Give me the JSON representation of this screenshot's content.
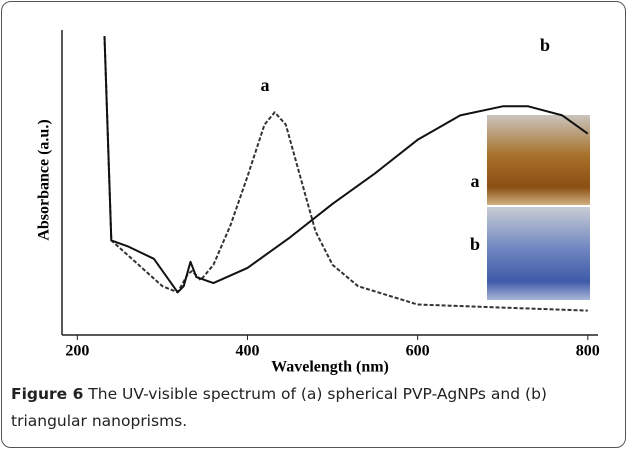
{
  "chart_data": {
    "type": "line",
    "x_label": "Wavelength (nm)",
    "y_label": "Absorbance (a.u.)",
    "xlim": [
      182,
      812
    ],
    "xticks": [
      200,
      400,
      600,
      800
    ],
    "ylim": [
      0,
      1
    ],
    "series": [
      {
        "name": "a",
        "color": "#333333",
        "dash": true,
        "x": [
          232,
          240,
          260,
          300,
          318,
          330,
          335,
          345,
          360,
          380,
          400,
          420,
          432,
          445,
          460,
          480,
          500,
          530,
          600,
          700,
          800
        ],
        "values": [
          0.98,
          0.31,
          0.26,
          0.16,
          0.14,
          0.2,
          0.21,
          0.18,
          0.23,
          0.36,
          0.52,
          0.69,
          0.73,
          0.69,
          0.54,
          0.34,
          0.23,
          0.16,
          0.1,
          0.09,
          0.08
        ]
      },
      {
        "name": "b",
        "color": "#111111",
        "dash": false,
        "x": [
          232,
          240,
          260,
          290,
          318,
          325,
          333,
          340,
          360,
          400,
          450,
          500,
          550,
          600,
          650,
          700,
          730,
          770,
          800
        ],
        "values": [
          0.98,
          0.31,
          0.29,
          0.25,
          0.14,
          0.16,
          0.24,
          0.19,
          0.17,
          0.22,
          0.32,
          0.43,
          0.53,
          0.64,
          0.72,
          0.75,
          0.75,
          0.72,
          0.66
        ]
      }
    ]
  },
  "caption": {
    "label": "Figure 6",
    "text": " The UV-visible spectrum of (a) spherical PVP-AgNPs and (b) triangular nanoprisms."
  }
}
